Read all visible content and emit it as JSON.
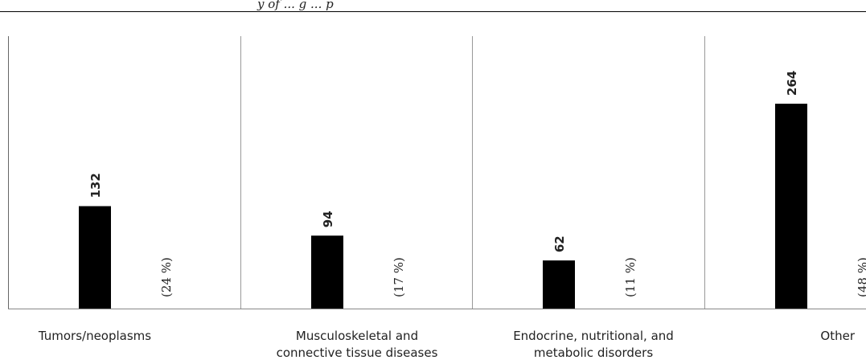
{
  "header": {
    "text": "y of ... g ... p"
  },
  "chart_data": {
    "type": "bar",
    "categories": [
      "Tumors/neoplasms",
      "Musculoskeletal and connective tissue diseases",
      "Endocrine, nutritional, and metabolic disorders",
      "Other"
    ],
    "category_lines": [
      [
        "Tumors/neoplasms"
      ],
      [
        "Musculoskeletal and",
        "connective tissue diseases"
      ],
      [
        "Endocrine, nutritional, and",
        "metabolic disorders"
      ],
      [
        "Other"
      ]
    ],
    "values": [
      132,
      94,
      62,
      264
    ],
    "value_labels": [
      "132",
      "94",
      "62",
      "264"
    ],
    "percent_labels": [
      "(24 %)",
      "(17 %)",
      "(11 %)",
      "(48 %)"
    ],
    "ylim": [
      0,
      290
    ],
    "bar_color": "#000000",
    "grid": false,
    "title": "",
    "xlabel": "",
    "ylabel": ""
  }
}
